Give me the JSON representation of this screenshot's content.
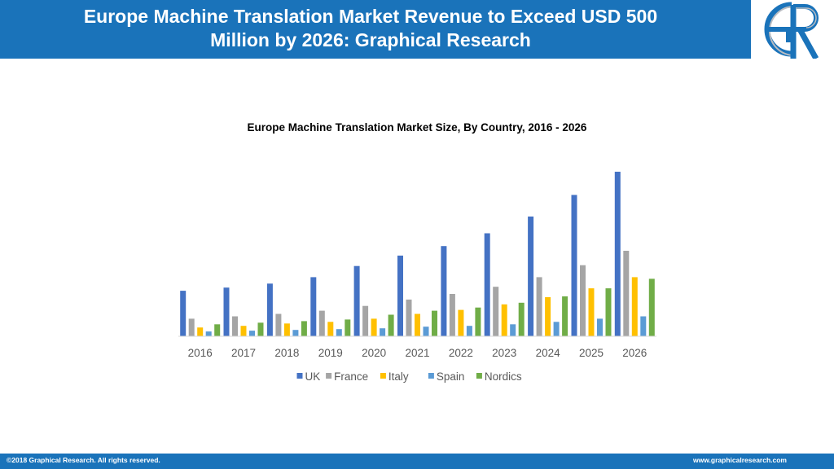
{
  "header": {
    "title_line1": "Europe Machine Translation Market Revenue to Exceed USD 500",
    "title_line2": "Million by 2026: Graphical Research"
  },
  "logo": {
    "icon": "gr-logo-icon"
  },
  "chart_data": {
    "type": "bar",
    "title": "Europe Machine Translation Market Size, By Country, 2016  - 2026",
    "xlabel": "",
    "ylabel": "",
    "grid": false,
    "legend_position": "bottom",
    "categories": [
      "2016",
      "2017",
      "2018",
      "2019",
      "2020",
      "2021",
      "2022",
      "2023",
      "2024",
      "2025",
      "2026"
    ],
    "ylim": [
      0,
      210
    ],
    "series": [
      {
        "name": "UK",
        "color": "#4472c4",
        "values": [
          57,
          61,
          66,
          74,
          88,
          101,
          113,
          129,
          150,
          177,
          206
        ]
      },
      {
        "name": "France",
        "color": "#a5a5a5",
        "values": [
          22,
          25,
          28,
          32,
          38,
          46,
          53,
          62,
          74,
          89,
          107
        ]
      },
      {
        "name": "Italy",
        "color": "#ffc000",
        "values": [
          11,
          13,
          16,
          18,
          22,
          28,
          33,
          40,
          49,
          60,
          74
        ]
      },
      {
        "name": "Spain",
        "color": "#5b9bd5",
        "values": [
          6,
          7,
          8,
          9,
          10,
          12,
          13,
          15,
          18,
          22,
          25
        ]
      },
      {
        "name": "Nordics",
        "color": "#70ad47",
        "values": [
          15,
          17,
          19,
          21,
          27,
          32,
          36,
          42,
          50,
          60,
          72
        ]
      }
    ]
  },
  "footer": {
    "copyright": "©2018 Graphical Research. All rights reserved.",
    "website": "www.graphicalresearch.com"
  }
}
